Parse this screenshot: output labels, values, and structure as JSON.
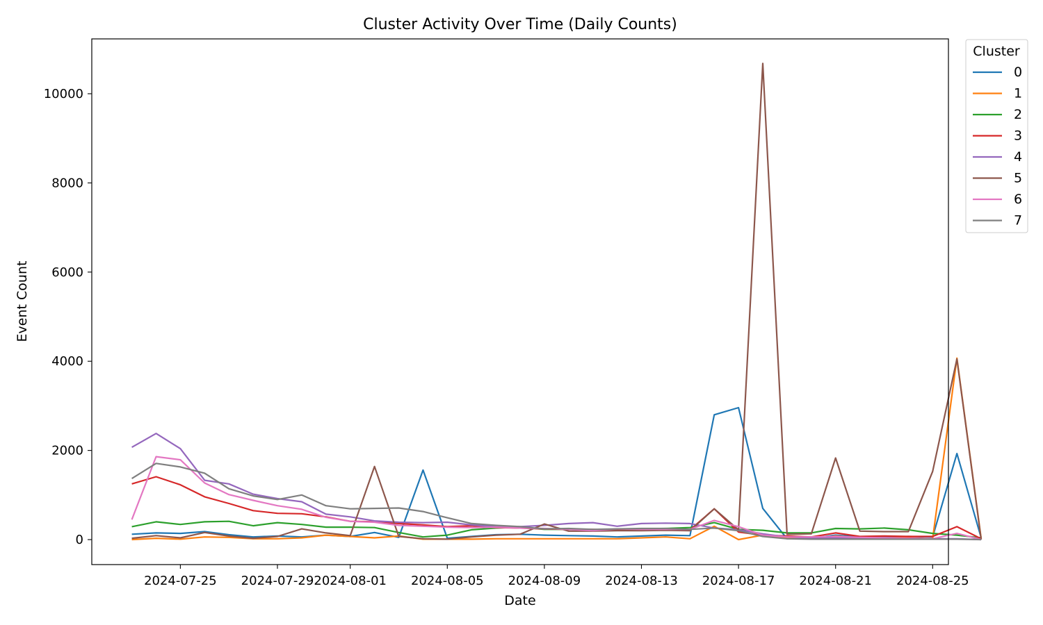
{
  "chart_data": {
    "type": "line",
    "title": "Cluster Activity Over Time (Daily Counts)",
    "xlabel": "Date",
    "ylabel": "Event Count",
    "x_start": "2024-07-23",
    "x_end": "2024-08-24",
    "xlim": [
      "2024-07-21T08:24",
      "2024-08-25T15:36"
    ],
    "ylim": [
      -560,
      11230
    ],
    "xticks": [
      "2024-07-25",
      "2024-07-29",
      "2024-08-01",
      "2024-08-05",
      "2024-08-09",
      "2024-08-13",
      "2024-08-17",
      "2024-08-21",
      "2024-08-25"
    ],
    "yticks": [
      0,
      2000,
      4000,
      6000,
      8000,
      10000
    ],
    "legend": {
      "title": "Cluster",
      "placement": "outside-top-right"
    },
    "grid": false,
    "series": [
      {
        "name": "0",
        "color": "#1f77b4",
        "values": [
          120,
          150,
          140,
          180,
          110,
          60,
          80,
          60,
          100,
          70,
          160,
          50,
          1560,
          30,
          70,
          110,
          120,
          100,
          90,
          80,
          60,
          80,
          100,
          90,
          2800,
          2960,
          700,
          20,
          30,
          100,
          60,
          50,
          70,
          60,
          1930,
          40
        ]
      },
      {
        "name": "1",
        "color": "#ff7f0e",
        "values": [
          0,
          30,
          10,
          60,
          50,
          20,
          20,
          40,
          100,
          70,
          40,
          80,
          10,
          10,
          10,
          20,
          20,
          20,
          20,
          20,
          20,
          40,
          60,
          20,
          300,
          0,
          100,
          30,
          20,
          80,
          40,
          40,
          40,
          20,
          4070,
          20
        ]
      },
      {
        "name": "2",
        "color": "#2ca02c",
        "values": [
          290,
          400,
          340,
          400,
          410,
          310,
          380,
          340,
          280,
          280,
          270,
          160,
          60,
          100,
          220,
          260,
          280,
          230,
          230,
          210,
          230,
          240,
          250,
          270,
          380,
          230,
          210,
          150,
          150,
          250,
          240,
          260,
          220,
          140,
          100,
          40
        ]
      },
      {
        "name": "3",
        "color": "#d62728",
        "values": [
          1250,
          1410,
          1230,
          960,
          810,
          650,
          590,
          580,
          510,
          410,
          400,
          360,
          330,
          290,
          310,
          270,
          260,
          240,
          230,
          230,
          210,
          220,
          230,
          220,
          690,
          170,
          100,
          80,
          60,
          150,
          70,
          80,
          70,
          70,
          290,
          20
        ]
      },
      {
        "name": "4",
        "color": "#9467bd",
        "values": [
          2070,
          2380,
          2040,
          1330,
          1250,
          1020,
          920,
          850,
          570,
          510,
          420,
          390,
          380,
          390,
          330,
          290,
          290,
          320,
          360,
          380,
          300,
          360,
          370,
          360,
          260,
          220,
          130,
          60,
          40,
          40,
          40,
          30,
          30,
          20,
          20,
          0
        ]
      },
      {
        "name": "5",
        "color": "#8c564b",
        "values": [
          30,
          90,
          40,
          160,
          80,
          30,
          70,
          240,
          150,
          90,
          1640,
          70,
          20,
          10,
          60,
          100,
          120,
          350,
          190,
          190,
          200,
          200,
          210,
          200,
          690,
          220,
          10680,
          120,
          130,
          1830,
          190,
          180,
          180,
          1530,
          4050,
          0
        ]
      },
      {
        "name": "6",
        "color": "#e377c2",
        "values": [
          450,
          1860,
          1790,
          1270,
          1010,
          880,
          760,
          680,
          500,
          410,
          390,
          320,
          300,
          280,
          270,
          280,
          260,
          250,
          230,
          200,
          240,
          230,
          230,
          230,
          430,
          290,
          100,
          60,
          60,
          70,
          50,
          40,
          30,
          20,
          140,
          0
        ]
      },
      {
        "name": "7",
        "color": "#7f7f7f",
        "values": [
          1370,
          1710,
          1630,
          1490,
          1140,
          980,
          900,
          1000,
          760,
          690,
          700,
          710,
          630,
          490,
          360,
          320,
          290,
          240,
          250,
          230,
          240,
          250,
          250,
          230,
          260,
          200,
          70,
          20,
          10,
          10,
          10,
          10,
          10,
          10,
          10,
          0
        ]
      }
    ]
  }
}
